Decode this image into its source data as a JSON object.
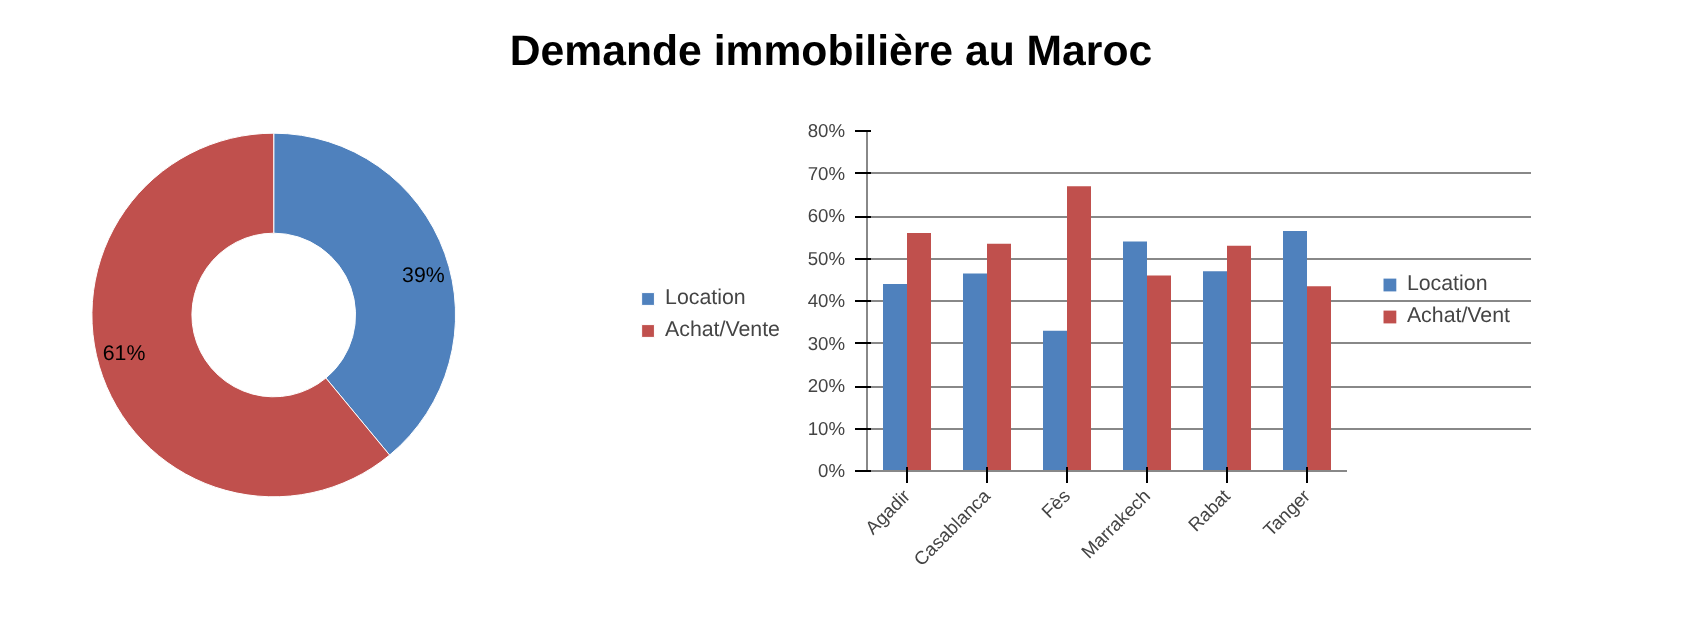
{
  "chart_data": [
    {
      "type": "donut",
      "title": "Demande immobilière au Maroc",
      "categories": [
        "Location",
        "Achat/Vente"
      ],
      "values": [
        39,
        61
      ],
      "colors": [
        "#4f81bd",
        "#c0504d"
      ],
      "value_labels": [
        "39%",
        "61%"
      ],
      "legend": "right"
    },
    {
      "type": "bar",
      "categories": [
        "Agadir",
        "Casablanca",
        "Fès",
        "Marrakech",
        "Rabat",
        "Tanger"
      ],
      "series": [
        {
          "name": "Location",
          "color": "#4f81bd",
          "values": [
            44,
            46.5,
            33,
            54,
            47,
            56.5
          ]
        },
        {
          "name": "Achat/Vent",
          "color": "#c0504d",
          "values": [
            56,
            53.5,
            67,
            46,
            53,
            43.5
          ]
        }
      ],
      "ylim": [
        0,
        80
      ],
      "yticks": [
        {
          "value": 0,
          "label": "0%"
        },
        {
          "value": 10,
          "label": "10%"
        },
        {
          "value": 20,
          "label": "20%"
        },
        {
          "value": 30,
          "label": "30%"
        },
        {
          "value": 40,
          "label": "40%"
        },
        {
          "value": 50,
          "label": "50%"
        },
        {
          "value": 60,
          "label": "60%"
        },
        {
          "value": 70,
          "label": "70%"
        },
        {
          "value": 80,
          "label": "80%"
        }
      ],
      "grid": "y",
      "legend": "right"
    }
  ]
}
